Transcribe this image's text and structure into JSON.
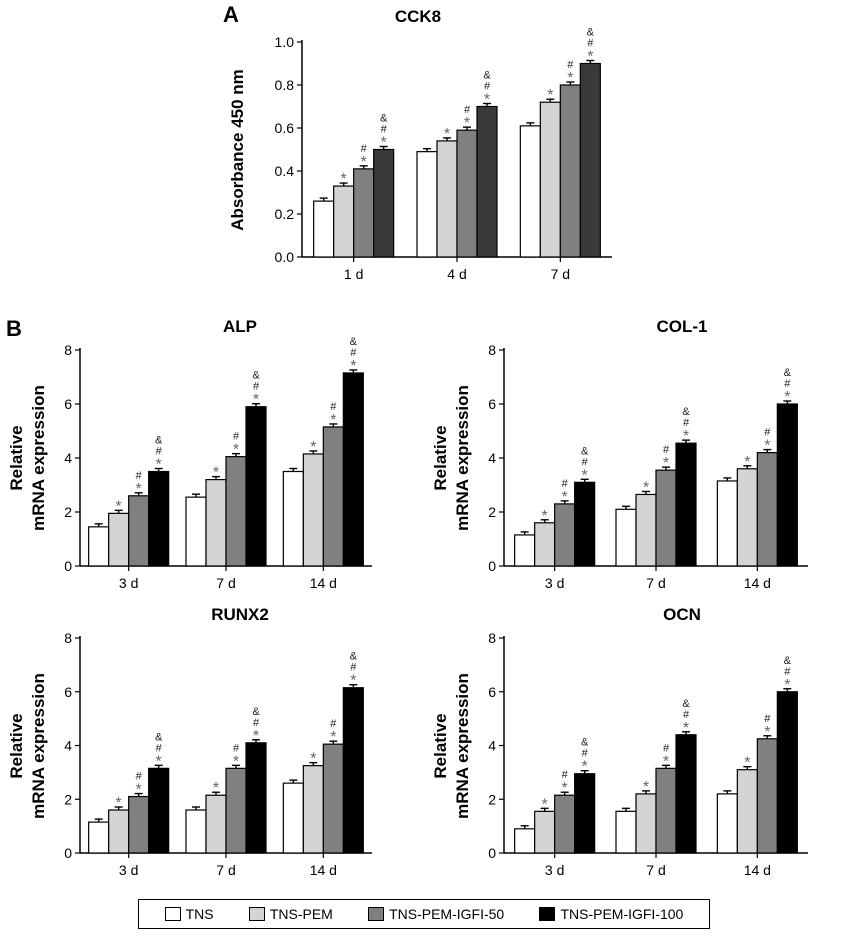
{
  "panels": [
    "A",
    "B"
  ],
  "legend": [
    {
      "label": "TNS",
      "color": "#ffffff"
    },
    {
      "label": "TNS-PEM",
      "color": "#d4d4d4"
    },
    {
      "label": "TNS-PEM-IGFI-50",
      "color": "#808080"
    },
    {
      "label": "TNS-PEM-IGFI-100",
      "color": "#000000"
    }
  ],
  "chart_data": [
    {
      "type": "bar",
      "title": "CCK8",
      "ylabel": "Absorbance 450 nm",
      "categories": [
        "1 d",
        "4 d",
        "7 d"
      ],
      "ylim": [
        0,
        1.0
      ],
      "yticks": [
        "0.0",
        "0.2",
        "0.4",
        "0.6",
        "0.8",
        "1.0"
      ],
      "series": [
        {
          "name": "TNS",
          "color": "#ffffff",
          "values": [
            0.26,
            0.49,
            0.61
          ]
        },
        {
          "name": "TNS-PEM",
          "color": "#d4d4d4",
          "values": [
            0.33,
            0.54,
            0.72
          ]
        },
        {
          "name": "TNS-PEM-IGFI-50",
          "color": "#808080",
          "values": [
            0.41,
            0.59,
            0.8
          ]
        },
        {
          "name": "TNS-PEM-IGFI-100",
          "color": "#3a3a3a",
          "values": [
            0.5,
            0.7,
            0.9
          ]
        }
      ]
    },
    {
      "type": "bar",
      "title": "ALP",
      "ylabel": "Relative mRNA expression",
      "categories": [
        "3 d",
        "7 d",
        "14 d"
      ],
      "ylim": [
        0,
        8
      ],
      "yticks": [
        "0",
        "2",
        "4",
        "6",
        "8"
      ],
      "series": [
        {
          "name": "TNS",
          "color": "#ffffff",
          "values": [
            1.45,
            2.55,
            3.5
          ]
        },
        {
          "name": "TNS-PEM",
          "color": "#d4d4d4",
          "values": [
            1.95,
            3.2,
            4.15
          ]
        },
        {
          "name": "TNS-PEM-IGFI-50",
          "color": "#808080",
          "values": [
            2.6,
            4.05,
            5.15
          ]
        },
        {
          "name": "TNS-PEM-IGFI-100",
          "color": "#000000",
          "values": [
            3.5,
            5.9,
            7.15
          ]
        }
      ]
    },
    {
      "type": "bar",
      "title": "COL-1",
      "ylabel": "Relative mRNA expression",
      "categories": [
        "3 d",
        "7 d",
        "14 d"
      ],
      "ylim": [
        0,
        8
      ],
      "yticks": [
        "0",
        "2",
        "4",
        "6",
        "8"
      ],
      "series": [
        {
          "name": "TNS",
          "color": "#ffffff",
          "values": [
            1.15,
            2.1,
            3.15
          ]
        },
        {
          "name": "TNS-PEM",
          "color": "#d4d4d4",
          "values": [
            1.6,
            2.65,
            3.6
          ]
        },
        {
          "name": "TNS-PEM-IGFI-50",
          "color": "#808080",
          "values": [
            2.3,
            3.55,
            4.2
          ]
        },
        {
          "name": "TNS-PEM-IGFI-100",
          "color": "#000000",
          "values": [
            3.1,
            4.55,
            6.0
          ]
        }
      ]
    },
    {
      "type": "bar",
      "title": "RUNX2",
      "ylabel": "Relative mRNA expression",
      "categories": [
        "3 d",
        "7 d",
        "14 d"
      ],
      "ylim": [
        0,
        8
      ],
      "yticks": [
        "0",
        "2",
        "4",
        "6",
        "8"
      ],
      "series": [
        {
          "name": "TNS",
          "color": "#ffffff",
          "values": [
            1.15,
            1.6,
            2.6
          ]
        },
        {
          "name": "TNS-PEM",
          "color": "#d4d4d4",
          "values": [
            1.6,
            2.15,
            3.25
          ]
        },
        {
          "name": "TNS-PEM-IGFI-50",
          "color": "#808080",
          "values": [
            2.1,
            3.15,
            4.05
          ]
        },
        {
          "name": "TNS-PEM-IGFI-100",
          "color": "#000000",
          "values": [
            3.15,
            4.1,
            6.15
          ]
        }
      ]
    },
    {
      "type": "bar",
      "title": "OCN",
      "ylabel": "Relative mRNA expression",
      "categories": [
        "3 d",
        "7 d",
        "14 d"
      ],
      "ylim": [
        0,
        8
      ],
      "yticks": [
        "0",
        "2",
        "4",
        "6",
        "8"
      ],
      "series": [
        {
          "name": "TNS",
          "color": "#ffffff",
          "values": [
            0.9,
            1.55,
            2.2
          ]
        },
        {
          "name": "TNS-PEM",
          "color": "#d4d4d4",
          "values": [
            1.55,
            2.2,
            3.1
          ]
        },
        {
          "name": "TNS-PEM-IGFI-50",
          "color": "#808080",
          "values": [
            2.15,
            3.15,
            4.25
          ]
        },
        {
          "name": "TNS-PEM-IGFI-100",
          "color": "#000000",
          "values": [
            2.95,
            4.4,
            6.0
          ]
        }
      ]
    }
  ],
  "significance_marks": [
    "",
    "*",
    "#\n*",
    "&\n#\n*"
  ]
}
